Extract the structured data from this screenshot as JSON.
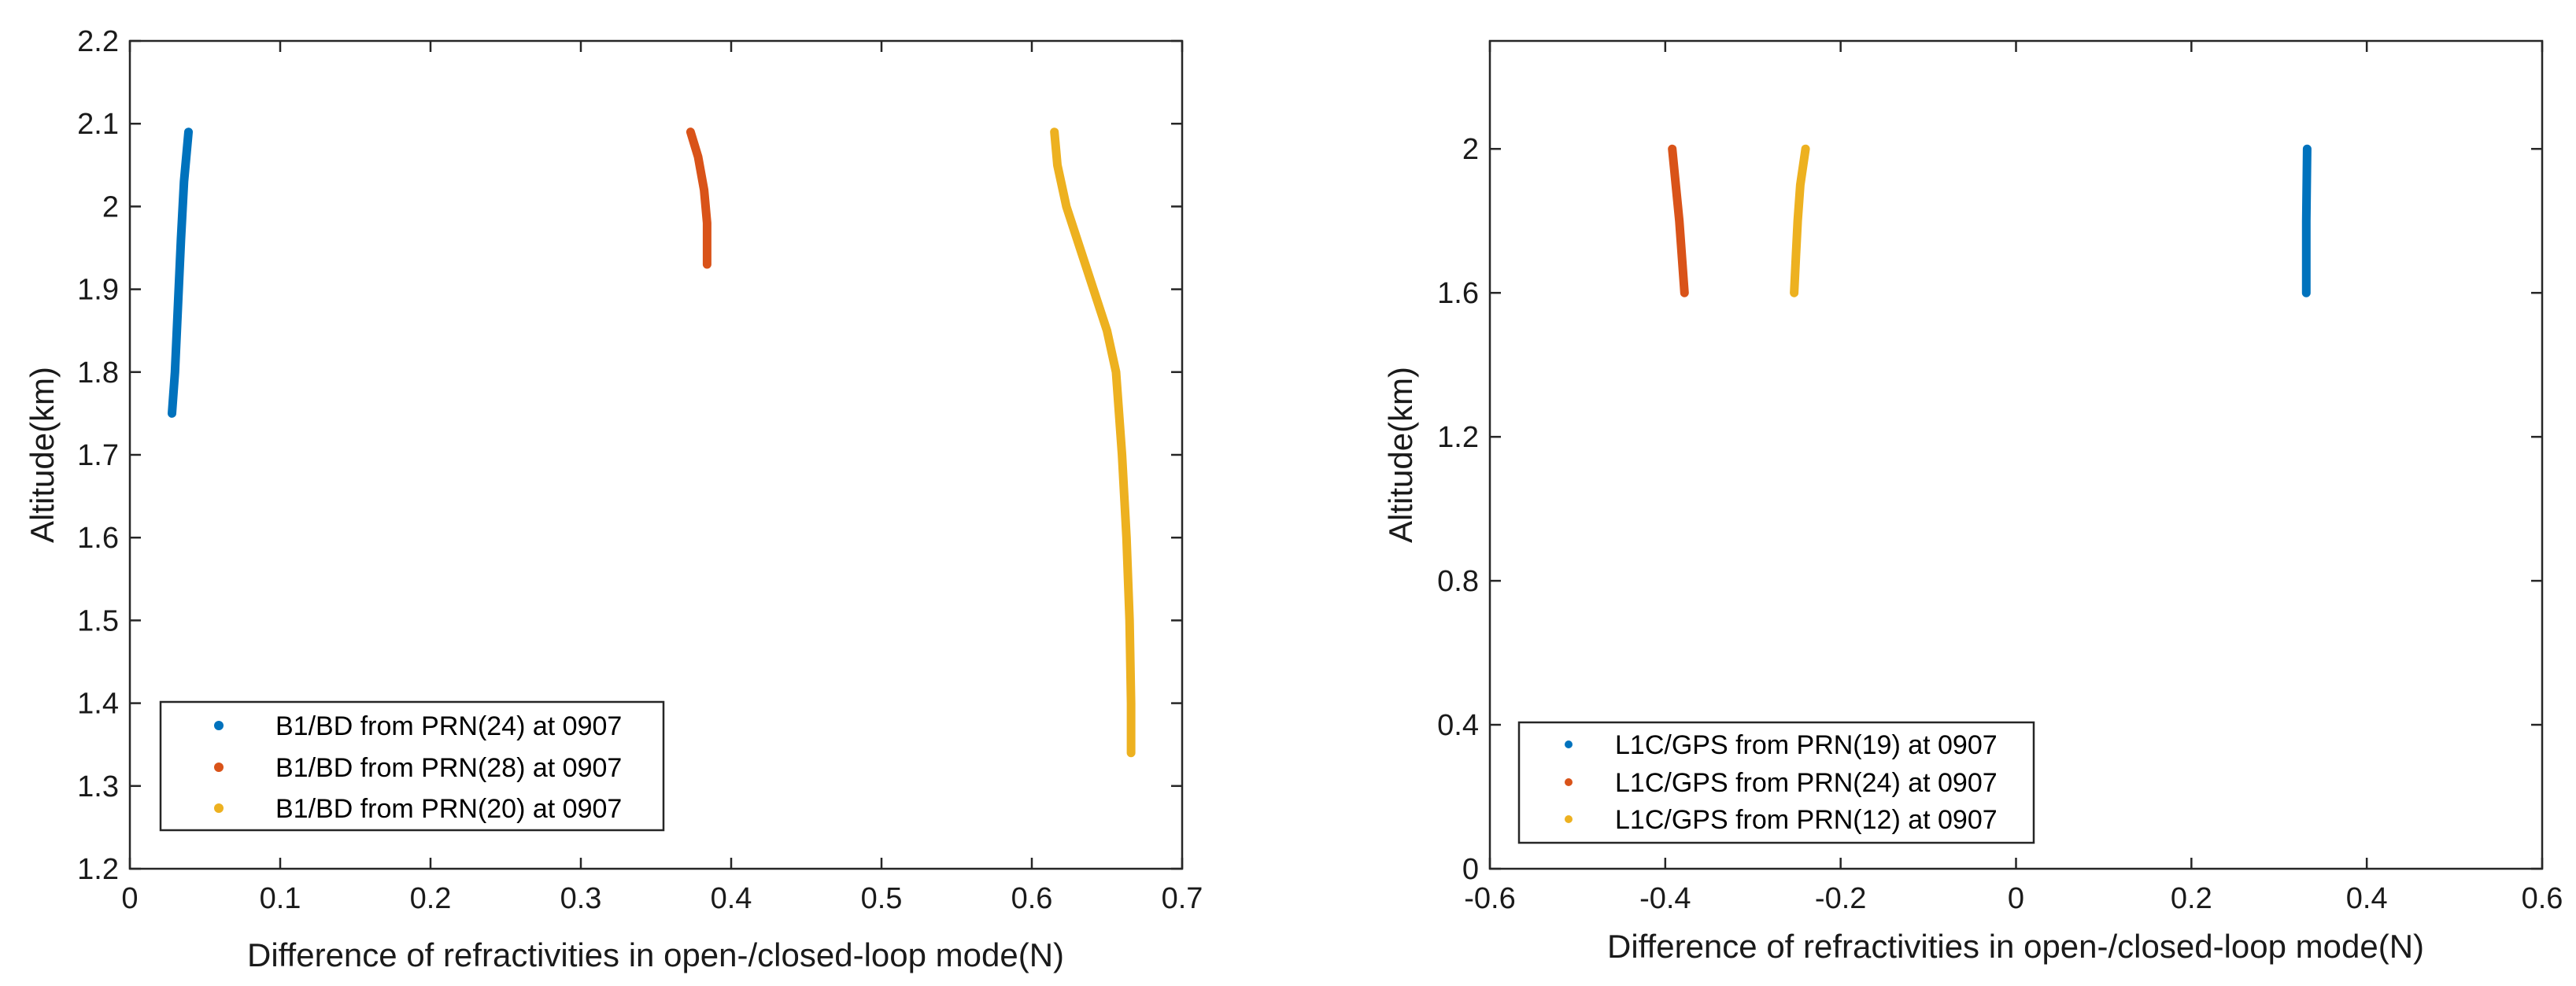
{
  "chart_data": [
    {
      "type": "line",
      "xlabel": "Difference of refractivities in open-/closed-loop mode(N)",
      "ylabel": "Altitude(km)",
      "xlim": [
        0,
        0.7
      ],
      "ylim": [
        1.2,
        2.2
      ],
      "xticks": [
        0,
        0.1,
        0.2,
        0.3,
        0.4,
        0.5,
        0.6,
        0.7
      ],
      "xtick_labels": [
        "0",
        "0.1",
        "0.2",
        "0.3",
        "0.4",
        "0.5",
        "0.6",
        "0.7"
      ],
      "yticks": [
        1.2,
        1.3,
        1.4,
        1.5,
        1.6,
        1.7,
        1.8,
        1.9,
        2.0,
        2.1,
        2.2
      ],
      "ytick_labels": [
        "1.2",
        "1.3",
        "1.4",
        "1.5",
        "1.6",
        "1.7",
        "1.8",
        "1.9",
        "2",
        "2.1",
        "2.2"
      ],
      "legend_location": "bottom-left",
      "series": [
        {
          "name": "B1/BD from PRN(24) at 0907",
          "color": "#0072BD",
          "points": [
            [
              0.028,
              1.75
            ],
            [
              0.03,
              1.8
            ],
            [
              0.032,
              1.88
            ],
            [
              0.034,
              1.96
            ],
            [
              0.036,
              2.03
            ],
            [
              0.039,
              2.09
            ]
          ]
        },
        {
          "name": "B1/BD from PRN(28) at 0907",
          "color": "#D95319",
          "points": [
            [
              0.373,
              2.09
            ],
            [
              0.378,
              2.06
            ],
            [
              0.382,
              2.02
            ],
            [
              0.384,
              1.98
            ],
            [
              0.384,
              1.93
            ]
          ]
        },
        {
          "name": "B1/BD from PRN(20) at 0907",
          "color": "#EDB120",
          "points": [
            [
              0.615,
              2.09
            ],
            [
              0.617,
              2.05
            ],
            [
              0.623,
              2.0
            ],
            [
              0.632,
              1.95
            ],
            [
              0.641,
              1.9
            ],
            [
              0.65,
              1.85
            ],
            [
              0.656,
              1.8
            ],
            [
              0.66,
              1.7
            ],
            [
              0.663,
              1.6
            ],
            [
              0.665,
              1.5
            ],
            [
              0.666,
              1.4
            ],
            [
              0.666,
              1.34
            ]
          ]
        }
      ]
    },
    {
      "type": "line",
      "xlabel": "Difference of refractivities in open-/closed-loop mode(N)",
      "ylabel": "Altitude(km)",
      "xlim": [
        -0.6,
        0.6
      ],
      "ylim": [
        0,
        2.3
      ],
      "xticks": [
        -0.6,
        -0.4,
        -0.2,
        0,
        0.2,
        0.4,
        0.6
      ],
      "xtick_labels": [
        "-0.6",
        "-0.4",
        "-0.2",
        "0",
        "0.2",
        "0.4",
        "0.6"
      ],
      "yticks": [
        0,
        0.4,
        0.8,
        1.2,
        1.6,
        2.0
      ],
      "ytick_labels": [
        "0",
        "0.4",
        "0.8",
        "1.2",
        "1.6",
        "2"
      ],
      "legend_location": "bottom-left",
      "series": [
        {
          "name": "L1C/GPS from PRN(19) at 0907",
          "color": "#0072BD",
          "points": [
            [
              0.331,
              1.6
            ],
            [
              0.331,
              1.8
            ],
            [
              0.332,
              2.0
            ]
          ]
        },
        {
          "name": "L1C/GPS from PRN(24) at 0907",
          "color": "#D95319",
          "points": [
            [
              -0.392,
              2.0
            ],
            [
              -0.388,
              1.9
            ],
            [
              -0.384,
              1.8
            ],
            [
              -0.381,
              1.7
            ],
            [
              -0.378,
              1.6
            ]
          ]
        },
        {
          "name": "L1C/GPS from PRN(12) at 0907",
          "color": "#EDB120",
          "points": [
            [
              -0.253,
              1.6
            ],
            [
              -0.251,
              1.7
            ],
            [
              -0.249,
              1.8
            ],
            [
              -0.246,
              1.9
            ],
            [
              -0.24,
              2.0
            ]
          ]
        }
      ]
    }
  ]
}
